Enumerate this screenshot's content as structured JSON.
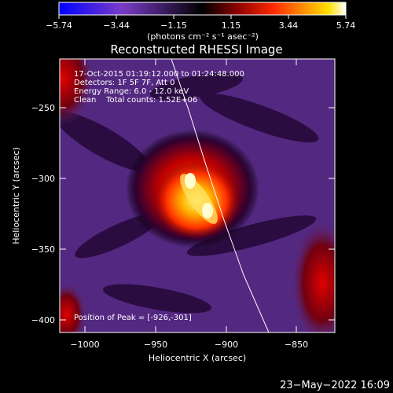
{
  "colorbar": {
    "ticks": [
      "−5.74",
      "−3.44",
      "−1.15",
      "1.15",
      "3.44",
      "5.74"
    ],
    "units": "(photons cm⁻² s⁻¹ asec⁻²)",
    "range": [
      -5.74,
      5.74
    ],
    "colors": [
      "#0000ff",
      "#7a3cc8",
      "#000000",
      "#8b0000",
      "#ff2a00",
      "#ff8c00",
      "#ffe000",
      "#ffffff"
    ]
  },
  "title": "Reconstructed RHESSI Image",
  "info": {
    "line1": "17-Oct-2015 01:19:12.000 to 01:24:48.000",
    "line2": "Detectors: 1F 5F 7F, Att 0",
    "line3": "Energy Range: 6.0 - 12.0 keV",
    "line4": "Clean    Total counts: 1.52E+06"
  },
  "peak": "Position of Peak = [-926,-301]",
  "axes": {
    "xlabel": "Heliocentric X (arcsec)",
    "ylabel": "Heliocentric Y (arcsec)",
    "xticks": [
      "−1000",
      "−950",
      "−900",
      "−850"
    ],
    "yticks": [
      "−250",
      "−300",
      "−350",
      "−400"
    ],
    "xlim": [
      -1018,
      -822
    ],
    "ylim": [
      -412,
      -216
    ]
  },
  "timestamp": "23−May−2022 16:09"
}
